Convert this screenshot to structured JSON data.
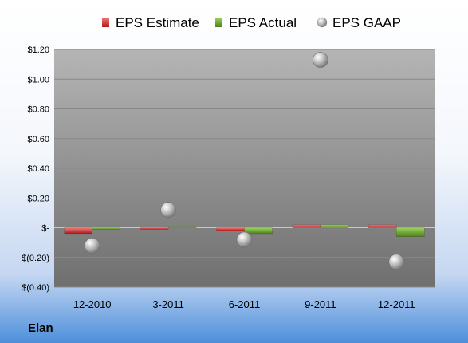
{
  "company_label": "Elan",
  "colors": {
    "estimate": "#d42a2a",
    "actual": "#6aa82b",
    "gaap": "#a6a6a6",
    "plot_top": "#b5b5b5",
    "plot_bottom": "#6f6f6f"
  },
  "chart_data": {
    "type": "bar",
    "title": "",
    "xlabel": "",
    "ylabel": "",
    "categories": [
      "12-2010",
      "3-2011",
      "6-2011",
      "9-2011",
      "12-2011"
    ],
    "ylim": [
      -0.4,
      1.2
    ],
    "yticks": [
      1.2,
      1.0,
      0.8,
      0.6,
      0.4,
      0.2,
      0.0,
      -0.2,
      -0.4
    ],
    "ytick_labels": [
      "$1.20",
      "$1.00",
      "$0.80",
      "$0.60",
      "$0.40",
      "$0.20",
      "$-",
      "$(0.20)",
      "$(0.40)"
    ],
    "grid": true,
    "legend_position": "top",
    "series": [
      {
        "name": "EPS Estimate",
        "type": "bar",
        "values": [
          -0.04,
          -0.01,
          -0.02,
          0.02,
          0.02
        ]
      },
      {
        "name": "EPS Actual",
        "type": "bar",
        "values": [
          -0.01,
          0.01,
          -0.04,
          0.02,
          -0.06
        ]
      },
      {
        "name": "EPS GAAP",
        "type": "scatter",
        "values": [
          -0.12,
          0.12,
          -0.08,
          1.13,
          -0.23
        ]
      }
    ]
  }
}
